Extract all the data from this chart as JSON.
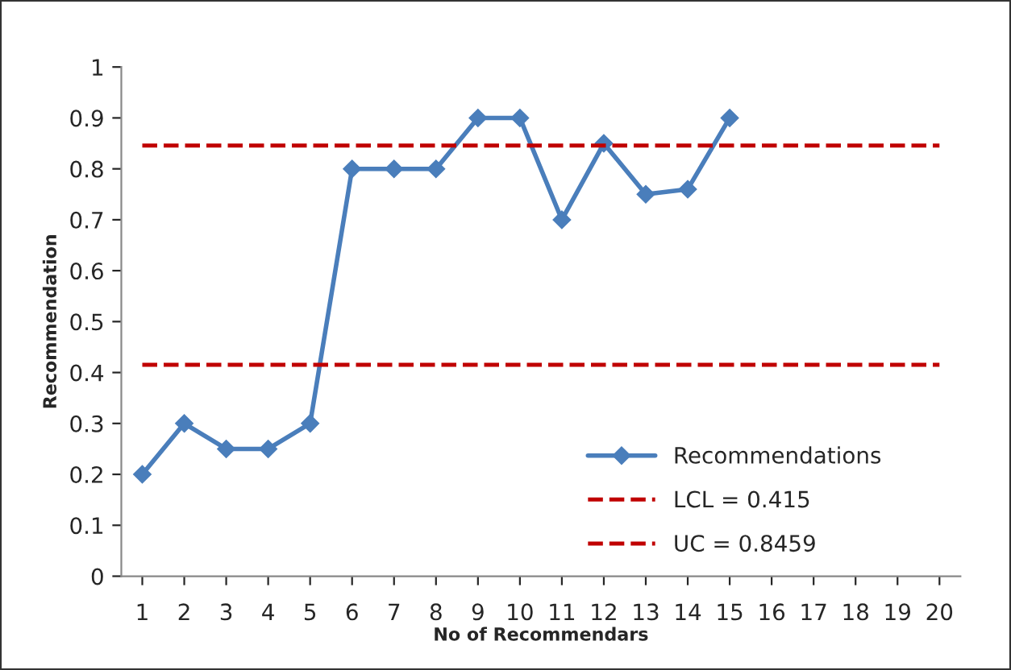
{
  "chart_data": {
    "type": "line",
    "xlabel": "No of Recommendars",
    "ylabel": "Recommendation",
    "categories": [
      "1",
      "2",
      "3",
      "4",
      "5",
      "6",
      "7",
      "8",
      "9",
      "10",
      "11",
      "12",
      "13",
      "14",
      "15",
      "16",
      "17",
      "18",
      "19",
      "20"
    ],
    "series": [
      {
        "name": "Recommendations",
        "color": "#4a7ebb",
        "values": [
          0.2,
          0.3,
          0.25,
          0.25,
          0.3,
          0.8,
          0.8,
          0.8,
          0.9,
          0.9,
          0.7,
          0.85,
          0.75,
          0.76,
          0.9,
          null,
          null,
          null,
          null,
          null
        ]
      }
    ],
    "ref_lines": [
      {
        "axis": "y",
        "value": 0.415,
        "label": "LCL = 0.415",
        "color": "#c00000",
        "line_style": "dashed"
      },
      {
        "axis": "y",
        "value": 0.8459,
        "label": "UC = 0.8459",
        "color": "#c00000",
        "line_style": "dashed"
      }
    ],
    "ylim": [
      0,
      1
    ],
    "yticks": [
      0,
      0.1,
      0.2,
      0.3,
      0.4,
      0.5,
      0.6,
      0.7,
      0.8,
      0.9,
      1
    ],
    "marker": "diamond",
    "line_style": "solid",
    "grid": false,
    "legend": "bottom right"
  }
}
